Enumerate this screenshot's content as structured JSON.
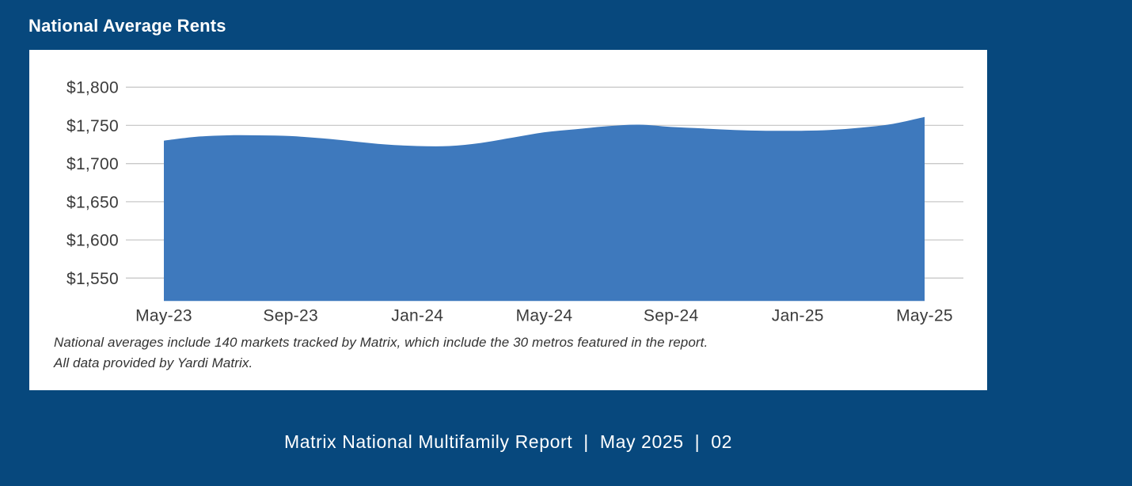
{
  "title": "National Average Rents",
  "chart_data": {
    "type": "area",
    "title": "National Average Rents",
    "x": [
      "May-23",
      "Jun-23",
      "Jul-23",
      "Aug-23",
      "Sep-23",
      "Oct-23",
      "Nov-23",
      "Dec-23",
      "Jan-24",
      "Feb-24",
      "Mar-24",
      "Apr-24",
      "May-24",
      "Jun-24",
      "Jul-24",
      "Aug-24",
      "Sep-24",
      "Oct-24",
      "Nov-24",
      "Dec-24",
      "Jan-25",
      "Feb-25",
      "Mar-25",
      "Apr-25",
      "May-25"
    ],
    "values": [
      1730,
      1735,
      1737,
      1737,
      1736,
      1733,
      1729,
      1725,
      1723,
      1723,
      1727,
      1734,
      1741,
      1745,
      1749,
      1751,
      1748,
      1746,
      1744,
      1743,
      1743,
      1744,
      1747,
      1752,
      1761
    ],
    "xlabel": "",
    "ylabel": "",
    "ylim": [
      1520,
      1800
    ],
    "yticks": [
      1800,
      1750,
      1700,
      1650,
      1600,
      1550
    ],
    "ytick_labels": [
      "$1,800",
      "$1,750",
      "$1,700",
      "$1,650",
      "$1,600",
      "$1,550"
    ],
    "xtick_indices": [
      0,
      4,
      8,
      12,
      16,
      20,
      24
    ],
    "xtick_labels": [
      "May-23",
      "Sep-23",
      "Jan-24",
      "May-24",
      "Sep-24",
      "Jan-25",
      "May-25"
    ],
    "grid": "horizontal",
    "legend": "none"
  },
  "footnote": {
    "line1": "National averages include 140 markets tracked by Matrix, which include the 30 metros featured in the report.",
    "line2": "All data provided by Yardi Matrix."
  },
  "footer": {
    "report": "Matrix National Multifamily Report",
    "separator": "|",
    "date": "May 2025",
    "page": "02"
  },
  "colors": {
    "background": "#07487D",
    "panel": "#FFFFFF",
    "area-fill": "#3E79BD",
    "gridline": "#C9C9C9",
    "axis-text": "#3B3B3B",
    "footnote-text": "#333333",
    "heading-text": "#FFFFFF",
    "footer-text": "#FFFFFF"
  }
}
